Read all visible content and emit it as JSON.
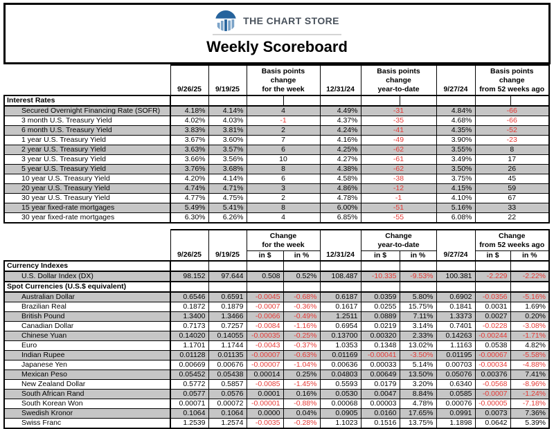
{
  "masthead": {
    "logo_text": "THE CHART STORE",
    "title": "Weekly Scoreboard"
  },
  "colors": {
    "negative_red": "#e53935",
    "row_gray": "#c6c6c6",
    "border_black": "#000000",
    "logo_blue": "#26639c",
    "logo_bar_blue": "#7ba3c8",
    "logo_text_gray": "#49525c",
    "underline_gray": "#d4d4d4"
  },
  "columns": {
    "date1": "9/26/25",
    "date2": "9/19/25",
    "date3": "12/31/24",
    "date4": "9/27/24",
    "sub_dollar": "in $",
    "sub_percent": "in %"
  },
  "rates_header": {
    "change_line1": "Basis points",
    "change_line2": "change",
    "week": "for the week",
    "ytd": "year-to-date",
    "w52": "from 52 weeks ago"
  },
  "fx_header": {
    "change_line1": "Change",
    "week": "for the week",
    "ytd": "year-to-date",
    "w52": "from 52 weeks ago"
  },
  "rates_section": {
    "title": "Interest Rates",
    "rows": [
      {
        "label": "Secured Overnight Financing Rate (SOFR)",
        "cells": [
          "4.18%",
          "4.14%",
          "4",
          "4.49%",
          "-31",
          "4.84%",
          "-66"
        ]
      },
      {
        "label": "3 month U.S. Treasury Yield",
        "cells": [
          "4.02%",
          "4.03%",
          "-1",
          "4.37%",
          "-35",
          "4.68%",
          "-66"
        ]
      },
      {
        "label": "6 month U.S. Treasury Yield",
        "cells": [
          "3.83%",
          "3.81%",
          "2",
          "4.24%",
          "-41",
          "4.35%",
          "-52"
        ]
      },
      {
        "label": "1 year U.S. Treasury Yield",
        "cells": [
          "3.67%",
          "3.60%",
          "7",
          "4.16%",
          "-49",
          "3.90%",
          "-23"
        ]
      },
      {
        "label": "2 year U.S. Treasury Yield",
        "cells": [
          "3.63%",
          "3.57%",
          "6",
          "4.25%",
          "-62",
          "3.55%",
          "8"
        ]
      },
      {
        "label": "3 year U.S. Treasury Yield",
        "cells": [
          "3.66%",
          "3.56%",
          "10",
          "4.27%",
          "-61",
          "3.49%",
          "17"
        ]
      },
      {
        "label": "5 year U.S. Treasury Yield",
        "cells": [
          "3.76%",
          "3.68%",
          "8",
          "4.38%",
          "-62",
          "3.50%",
          "26"
        ]
      },
      {
        "label": "10 year U.S. Treasury Yield",
        "cells": [
          "4.20%",
          "4.14%",
          "6",
          "4.58%",
          "-38",
          "3.75%",
          "45"
        ]
      },
      {
        "label": "20 year U.S. Treasury Yield",
        "cells": [
          "4.74%",
          "4.71%",
          "3",
          "4.86%",
          "-12",
          "4.15%",
          "59"
        ]
      },
      {
        "label": "30 year U.S. Treasury Yield",
        "cells": [
          "4.77%",
          "4.75%",
          "2",
          "4.78%",
          "-1",
          "4.10%",
          "67"
        ]
      },
      {
        "label": "15 year fixed-rate mortgages",
        "cells": [
          "5.49%",
          "5.41%",
          "8",
          "6.00%",
          "-51",
          "5.16%",
          "33"
        ]
      },
      {
        "label": "30 year fixed-rate mortgages",
        "cells": [
          "6.30%",
          "6.26%",
          "4",
          "6.85%",
          "-55",
          "6.08%",
          "22"
        ]
      }
    ]
  },
  "fx_sections": [
    {
      "title": "Currency Indexes",
      "rows": [
        {
          "label": "U.S. Dollar Index (DX)",
          "cells": [
            "98.152",
            "97.644",
            "0.508",
            "0.52%",
            "108.487",
            "-10.335",
            "-9.53%",
            "100.381",
            "-2.229",
            "-2.22%"
          ]
        }
      ]
    },
    {
      "title": "Spot Currencies (U.S.$ equivalent)",
      "rows": [
        {
          "label": "Australian Dollar",
          "cells": [
            "0.6546",
            "0.6591",
            "-0.0045",
            "-0.68%",
            "0.6187",
            "0.0359",
            "5.80%",
            "0.6902",
            "-0.0356",
            "-5.16%"
          ]
        },
        {
          "label": "Brazilian Real",
          "cells": [
            "0.1872",
            "0.1879",
            "-0.0007",
            "-0.36%",
            "0.1617",
            "0.0255",
            "15.75%",
            "0.1841",
            "0.0031",
            "1.69%"
          ]
        },
        {
          "label": "British Pound",
          "cells": [
            "1.3400",
            "1.3466",
            "-0.0066",
            "-0.49%",
            "1.2511",
            "0.0889",
            "7.11%",
            "1.3373",
            "0.0027",
            "0.20%"
          ]
        },
        {
          "label": "Canadian Dollar",
          "cells": [
            "0.7173",
            "0.7257",
            "-0.0084",
            "-1.16%",
            "0.6954",
            "0.0219",
            "3.14%",
            "0.7401",
            "-0.0228",
            "-3.08%"
          ]
        },
        {
          "label": "Chinese Yuan",
          "cells": [
            "0.14020",
            "0.14055",
            "-0.00035",
            "-0.25%",
            "0.13700",
            "0.00320",
            "2.33%",
            "0.14263",
            "-0.00244",
            "-1.71%"
          ]
        },
        {
          "label": "Euro",
          "cells": [
            "1.1701",
            "1.1744",
            "-0.0043",
            "-0.37%",
            "1.0353",
            "0.1348",
            "13.02%",
            "1.1163",
            "0.0538",
            "4.82%"
          ]
        },
        {
          "label": "Indian Rupee",
          "cells": [
            "0.01128",
            "0.01135",
            "-0.00007",
            "-0.63%",
            "0.01169",
            "-0.00041",
            "-3.50%",
            "0.01195",
            "-0.00067",
            "-5.58%"
          ]
        },
        {
          "label": "Japanese Yen",
          "cells": [
            "0.00669",
            "0.00676",
            "-0.00007",
            "-1.04%",
            "0.00636",
            "0.00033",
            "5.14%",
            "0.00703",
            "-0.00034",
            "-4.88%"
          ]
        },
        {
          "label": "Mexican Peso",
          "cells": [
            "0.05452",
            "0.05438",
            "0.00014",
            "0.25%",
            "0.04803",
            "0.00649",
            "13.50%",
            "0.05076",
            "0.00376",
            "7.41%"
          ]
        },
        {
          "label": "New Zealand Dollar",
          "cells": [
            "0.5772",
            "0.5857",
            "-0.0085",
            "-1.45%",
            "0.5593",
            "0.0179",
            "3.20%",
            "0.6340",
            "-0.0568",
            "-8.96%"
          ]
        },
        {
          "label": "South African Rand",
          "cells": [
            "0.0577",
            "0.0576",
            "0.0001",
            "0.16%",
            "0.0530",
            "0.0047",
            "8.84%",
            "0.0585",
            "-0.0007",
            "-1.24%"
          ]
        },
        {
          "label": "South Korean Won",
          "cells": [
            "0.00071",
            "0.00072",
            "-0.00001",
            "-0.88%",
            "0.00068",
            "0.00003",
            "4.78%",
            "0.00076",
            "-0.00005",
            "-7.18%"
          ]
        },
        {
          "label": "Swedish Kronor",
          "cells": [
            "0.1064",
            "0.1064",
            "0.0000",
            "0.04%",
            "0.0905",
            "0.0160",
            "17.65%",
            "0.0991",
            "0.0073",
            "7.36%"
          ]
        },
        {
          "label": "Swiss Franc",
          "cells": [
            "1.2539",
            "1.2574",
            "-0.0035",
            "-0.28%",
            "1.1023",
            "0.1516",
            "13.75%",
            "1.1898",
            "0.0642",
            "5.39%"
          ]
        }
      ]
    }
  ]
}
